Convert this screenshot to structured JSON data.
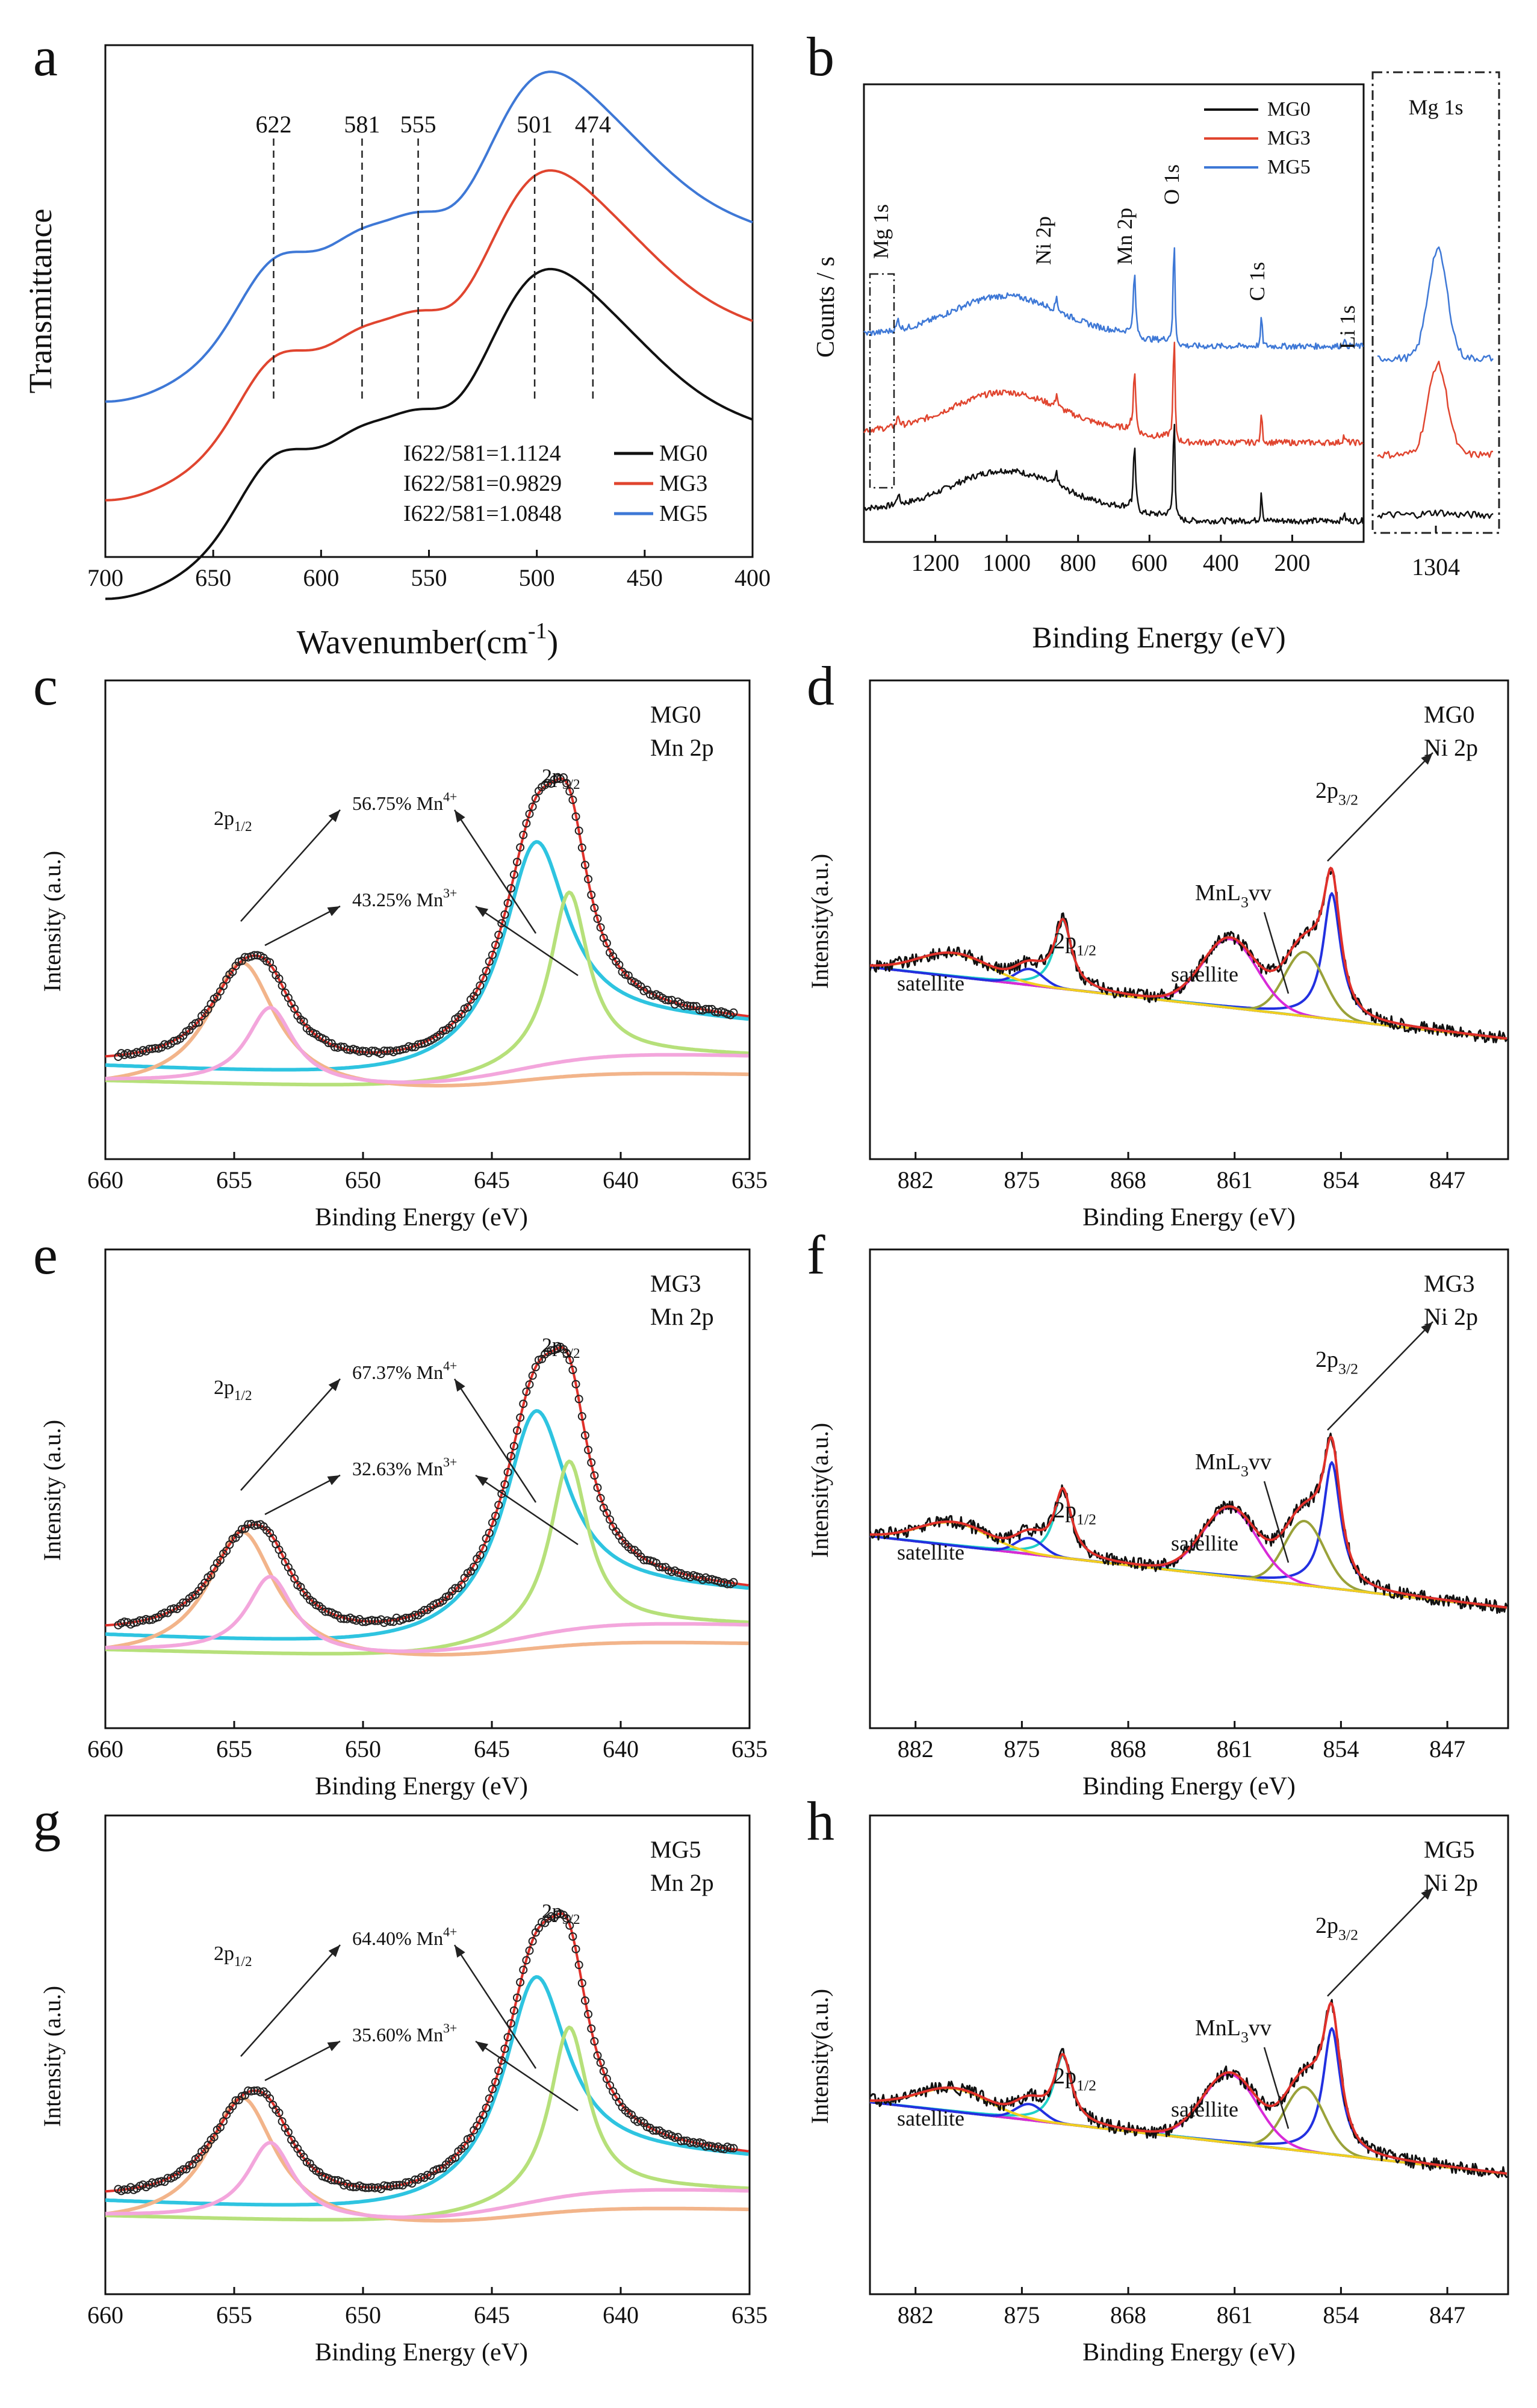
{
  "figure": {
    "colors": {
      "mg0": "#111111",
      "mg3": "#e0452f",
      "mg5": "#3e78d6",
      "peakRed": "#e0302a",
      "cyan": "#2ec4e0",
      "green": "#b6e07a",
      "orange": "#f2b48a",
      "pink": "#f3a6dc",
      "navy": "#2b2b9c",
      "blue": "#2230e0",
      "olive": "#9aa23a",
      "magenta": "#d82ad8",
      "yellow": "#f2cf1f",
      "tealFill": "#1fd0c8"
    }
  },
  "chart_data": [
    {
      "panel": "a",
      "type": "line",
      "xlabel": "Wavenumber(cm",
      "xlabel_sup": "-1",
      "xlabel_end": ")",
      "ylabel": "Transmittance",
      "xlim": [
        700,
        400
      ],
      "xticks": [
        "700",
        "650",
        "600",
        "550",
        "500",
        "450",
        "400"
      ],
      "peaks": [
        "622",
        "581",
        "555",
        "501",
        "474"
      ],
      "series": [
        {
          "name": "MG0",
          "ratio": "I622/581=1.1124",
          "offset": 0
        },
        {
          "name": "MG3",
          "ratio": "I622/581=0.9829",
          "offset": 1
        },
        {
          "name": "MG5",
          "ratio": "I622/581=1.0848",
          "offset": 2
        }
      ]
    },
    {
      "panel": "b",
      "type": "line",
      "xlabel": "Binding Energy (eV)",
      "ylabel": "Counts / s",
      "xlim": [
        1400,
        0
      ],
      "xticks": [
        "1200",
        "1000",
        "800",
        "600",
        "400",
        "200"
      ],
      "peak_labels": [
        "Mg 1s",
        "Ni 2p",
        "Mn 2p",
        "O 1s",
        "C 1s",
        "Li 1s"
      ],
      "inset_title": "Mg 1s",
      "inset_tick": "1304",
      "series": [
        {
          "name": "MG0"
        },
        {
          "name": "MG3"
        },
        {
          "name": "MG5"
        }
      ]
    },
    {
      "panel": "c",
      "type": "line",
      "sample": "MG0",
      "region": "Mn 2p",
      "xlim": [
        660,
        635
      ],
      "xticks": [
        "660",
        "655",
        "650",
        "645",
        "640",
        "635"
      ],
      "xlabel": "Binding Energy (eV)",
      "ylabel": "Intensity (a.u.)",
      "mn4": "56.75% Mn",
      "mn3": "43.25% Mn",
      "ion4": "4+",
      "ion3": "3+",
      "p12": "2p",
      "p12sub": "1/2",
      "p32": "2p",
      "p32sub": "3/2"
    },
    {
      "panel": "d",
      "type": "line",
      "sample": "MG0",
      "region": "Ni 2p",
      "xlim": [
        885,
        843
      ],
      "xticks": [
        "882",
        "875",
        "868",
        "861",
        "854",
        "847"
      ],
      "xlabel": "Binding Energy (eV)",
      "ylabel": "Intensity(a.u.)",
      "p12": "2p",
      "p12sub": "1/2",
      "p32": "2p",
      "p32sub": "3/2",
      "auger": "MnL",
      "auger_sub": "3",
      "auger_end": "vv",
      "sat": "satellite"
    },
    {
      "panel": "e",
      "type": "line",
      "sample": "MG3",
      "region": "Mn 2p",
      "xlim": [
        660,
        635
      ],
      "xticks": [
        "660",
        "655",
        "650",
        "645",
        "640",
        "635"
      ],
      "xlabel": "Binding Energy (eV)",
      "ylabel": "Intensity (a.u.)",
      "mn4": "67.37% Mn",
      "mn3": "32.63% Mn",
      "ion4": "4+",
      "ion3": "3+",
      "p12": "2p",
      "p12sub": "1/2",
      "p32": "2p",
      "p32sub": "3/2"
    },
    {
      "panel": "f",
      "type": "line",
      "sample": "MG3",
      "region": "Ni 2p",
      "xlim": [
        885,
        843
      ],
      "xticks": [
        "882",
        "875",
        "868",
        "861",
        "854",
        "847"
      ],
      "xlabel": "Binding Energy (eV)",
      "ylabel": "Intensity(a.u.)",
      "p12": "2p",
      "p12sub": "1/2",
      "p32": "2p",
      "p32sub": "3/2",
      "auger": "MnL",
      "auger_sub": "3",
      "auger_end": "vv",
      "sat": "satellite"
    },
    {
      "panel": "g",
      "type": "line",
      "sample": "MG5",
      "region": "Mn 2p",
      "xlim": [
        660,
        635
      ],
      "xticks": [
        "660",
        "655",
        "650",
        "645",
        "640",
        "635"
      ],
      "xlabel": "Binding Energy (eV)",
      "ylabel": "Intensity (a.u.)",
      "mn4": "64.40% Mn",
      "mn3": "35.60% Mn",
      "ion4": "4+",
      "ion3": "3+",
      "p12": "2p",
      "p12sub": "1/2",
      "p32": "2p",
      "p32sub": "3/2"
    },
    {
      "panel": "h",
      "type": "line",
      "sample": "MG5",
      "region": "Ni 2p",
      "xlim": [
        885,
        843
      ],
      "xticks": [
        "882",
        "875",
        "868",
        "861",
        "854",
        "847"
      ],
      "xlabel": "Binding Energy (eV)",
      "ylabel": "Intensity(a.u.)",
      "p12": "2p",
      "p12sub": "1/2",
      "p32": "2p",
      "p32sub": "3/2",
      "auger": "MnL",
      "auger_sub": "3",
      "auger_end": "vv",
      "sat": "satellite"
    }
  ]
}
